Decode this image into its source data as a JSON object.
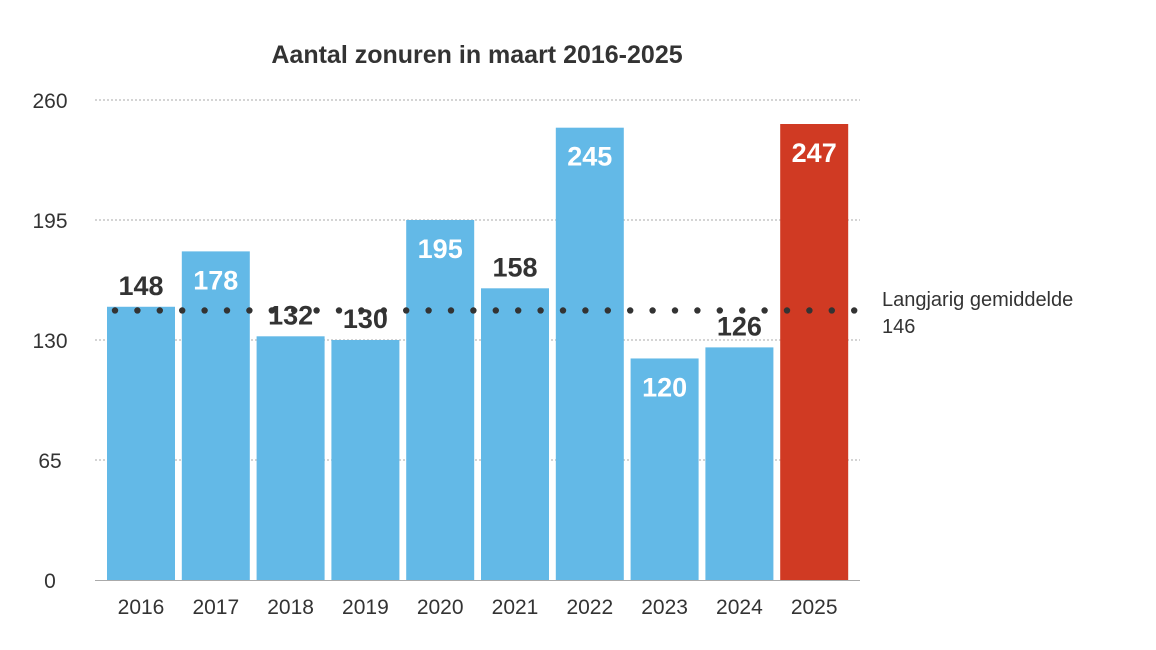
{
  "chart_data": {
    "type": "bar",
    "title": "Aantal zonuren in maart 2016-2025",
    "xlabel": "",
    "ylabel": "",
    "ylim": [
      0,
      260
    ],
    "yticks": [
      "0",
      "65",
      "130",
      "195",
      "260"
    ],
    "grid": true,
    "categories": [
      "2016",
      "2017",
      "2018",
      "2019",
      "2020",
      "2021",
      "2022",
      "2023",
      "2024",
      "2025"
    ],
    "values": [
      148,
      178,
      132,
      130,
      195,
      158,
      245,
      120,
      126,
      247
    ],
    "bar_color": "#63b9e7",
    "highlight_color": "#d03a23",
    "highlight_category": "2025",
    "reference_line": {
      "label": "Langjarig gemiddelde",
      "value_label": "146",
      "value": 146,
      "style": "dotted",
      "color": "#333333"
    }
  }
}
